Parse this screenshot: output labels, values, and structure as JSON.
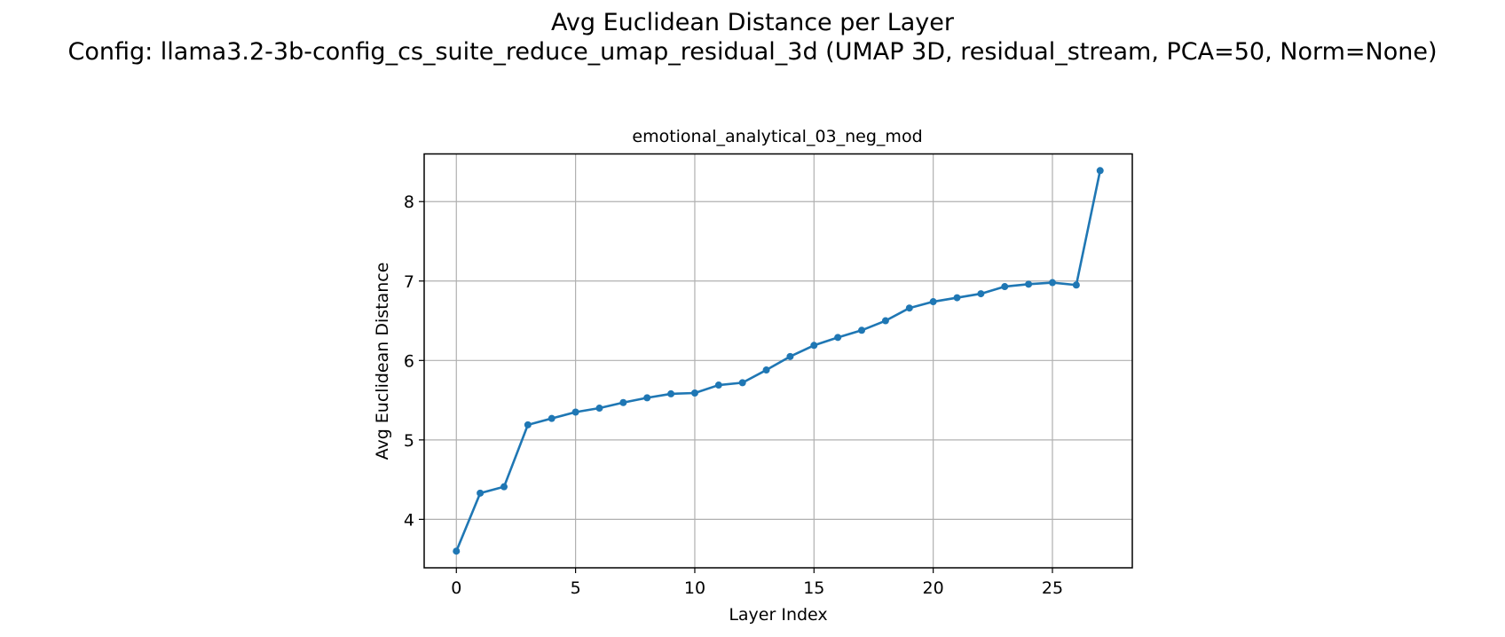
{
  "figure": {
    "suptitle_line1": "Avg Euclidean Distance per Layer",
    "suptitle_line2": "Config: llama3.2-3b-config_cs_suite_reduce_umap_residual_3d (UMAP 3D, residual_stream, PCA=50, Norm=None)"
  },
  "chart_data": {
    "type": "line",
    "title": "emotional_analytical_03_neg_mod",
    "xlabel": "Layer Index",
    "ylabel": "Avg Euclidean Distance",
    "xlim": [
      -1.35,
      28.35
    ],
    "ylim": [
      3.39,
      8.6
    ],
    "xticks": [
      0,
      5,
      10,
      15,
      20,
      25
    ],
    "yticks": [
      4,
      5,
      6,
      7,
      8
    ],
    "grid": true,
    "color": "#1f77b4",
    "x": [
      0,
      1,
      2,
      3,
      4,
      5,
      6,
      7,
      8,
      9,
      10,
      11,
      12,
      13,
      14,
      15,
      16,
      17,
      18,
      19,
      20,
      21,
      22,
      23,
      24,
      25,
      26,
      27
    ],
    "y": [
      3.6,
      4.33,
      4.41,
      5.19,
      5.27,
      5.35,
      5.4,
      5.47,
      5.53,
      5.58,
      5.59,
      5.69,
      5.72,
      5.88,
      6.05,
      6.19,
      6.29,
      6.38,
      6.5,
      6.66,
      6.74,
      6.79,
      6.84,
      6.93,
      6.96,
      6.98,
      6.95,
      8.39
    ]
  }
}
